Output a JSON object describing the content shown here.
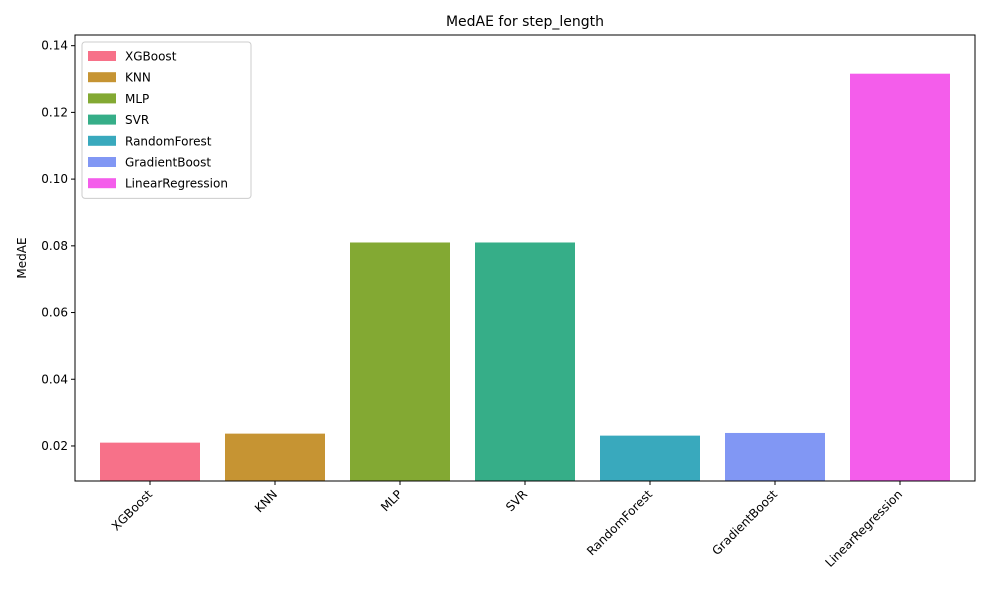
{
  "chart_data": {
    "type": "bar",
    "title": "MedAE for step_length",
    "xlabel": "",
    "ylabel": "MedAE",
    "categories": [
      "XGBoost",
      "KNN",
      "MLP",
      "SVR",
      "RandomForest",
      "GradientBoost",
      "LinearRegression"
    ],
    "values": [
      0.021,
      0.0237,
      0.081,
      0.081,
      0.0231,
      0.0239,
      0.1316
    ],
    "colors": [
      "#f77189",
      "#c69433",
      "#83a933",
      "#36ae88",
      "#39a9bd",
      "#8197f4",
      "#f45deb"
    ],
    "ylim": [
      0.0095,
      0.1432
    ],
    "yticks": [
      0.02,
      0.04,
      0.06,
      0.08,
      0.1,
      0.12,
      0.14
    ],
    "ytick_labels": [
      "0.02",
      "0.04",
      "0.06",
      "0.08",
      "0.10",
      "0.12",
      "0.14"
    ],
    "legend": {
      "placement": "top-left",
      "entries": [
        "XGBoost",
        "KNN",
        "MLP",
        "SVR",
        "RandomForest",
        "GradientBoost",
        "LinearRegression"
      ]
    },
    "grid": false
  }
}
